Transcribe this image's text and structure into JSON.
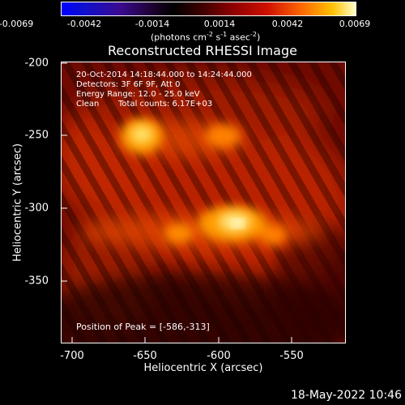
{
  "colorbar": {
    "ticks": [
      "-0.0069",
      "-0.0042",
      "-0.0014",
      "0.0014",
      "0.0042",
      "0.0069"
    ],
    "unit_prefix": "(photons cm",
    "unit_exp1": "-2",
    "unit_mid": " s",
    "unit_exp2": "-1",
    "unit_mid2": " asec",
    "unit_exp3": "-2",
    "unit_suffix": ")"
  },
  "title": "Reconstructed RHESSI Image",
  "annotations": {
    "time_range": "20-Oct-2014 14:18:44.000 to 14:24:44.000",
    "detectors": "Detectors: 3F 6F 9F, Att 0",
    "energy": "Energy Range: 12.0 - 25.0 keV",
    "clean_label": "Clean",
    "total_counts": "Total counts: 6.17E+03",
    "peak": "Position of Peak = [-586,-313]"
  },
  "axes": {
    "xlabel": "Heliocentric X (arcsec)",
    "ylabel": "Heliocentric Y (arcsec)",
    "xticks": [
      "-700",
      "-650",
      "-600",
      "-550"
    ],
    "yticks": [
      "-200",
      "-250",
      "-300",
      "-350"
    ]
  },
  "footer": {
    "timestamp": "18-May-2022 10:46"
  }
}
